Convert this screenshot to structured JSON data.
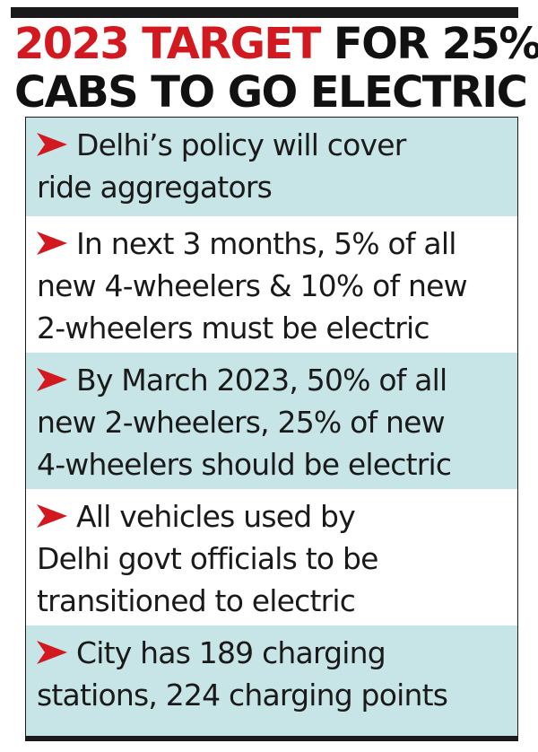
{
  "headline": {
    "accent": "2023 TARGET",
    "rest": " FOR 25%",
    "line2": "CABS TO GO ELECTRIC"
  },
  "items": [
    {
      "line1": "Delhi’s policy will cover",
      "line2": "ride aggregators",
      "line3": ""
    },
    {
      "line1": "In next 3 months, 5% of all",
      "line2": "new 4-wheelers & 10% of new",
      "line3": "2-wheelers must be electric"
    },
    {
      "line1": "By March 2023, 50% of all",
      "line2": "new 2-wheelers, 25% of new",
      "line3": "4-wheelers should be electric"
    },
    {
      "line1": "All vehicles used by",
      "line2": "Delhi govt officials to be",
      "line3": "transitioned to electric"
    },
    {
      "line1": "City has 189 charging",
      "line2": "stations, 224 charging points",
      "line3": ""
    }
  ],
  "colors": {
    "accent": "#d31920",
    "shade": "#c7e4e6",
    "text": "#1a1a1a"
  },
  "icons": {
    "bullet": "arrow-bullet-icon"
  }
}
